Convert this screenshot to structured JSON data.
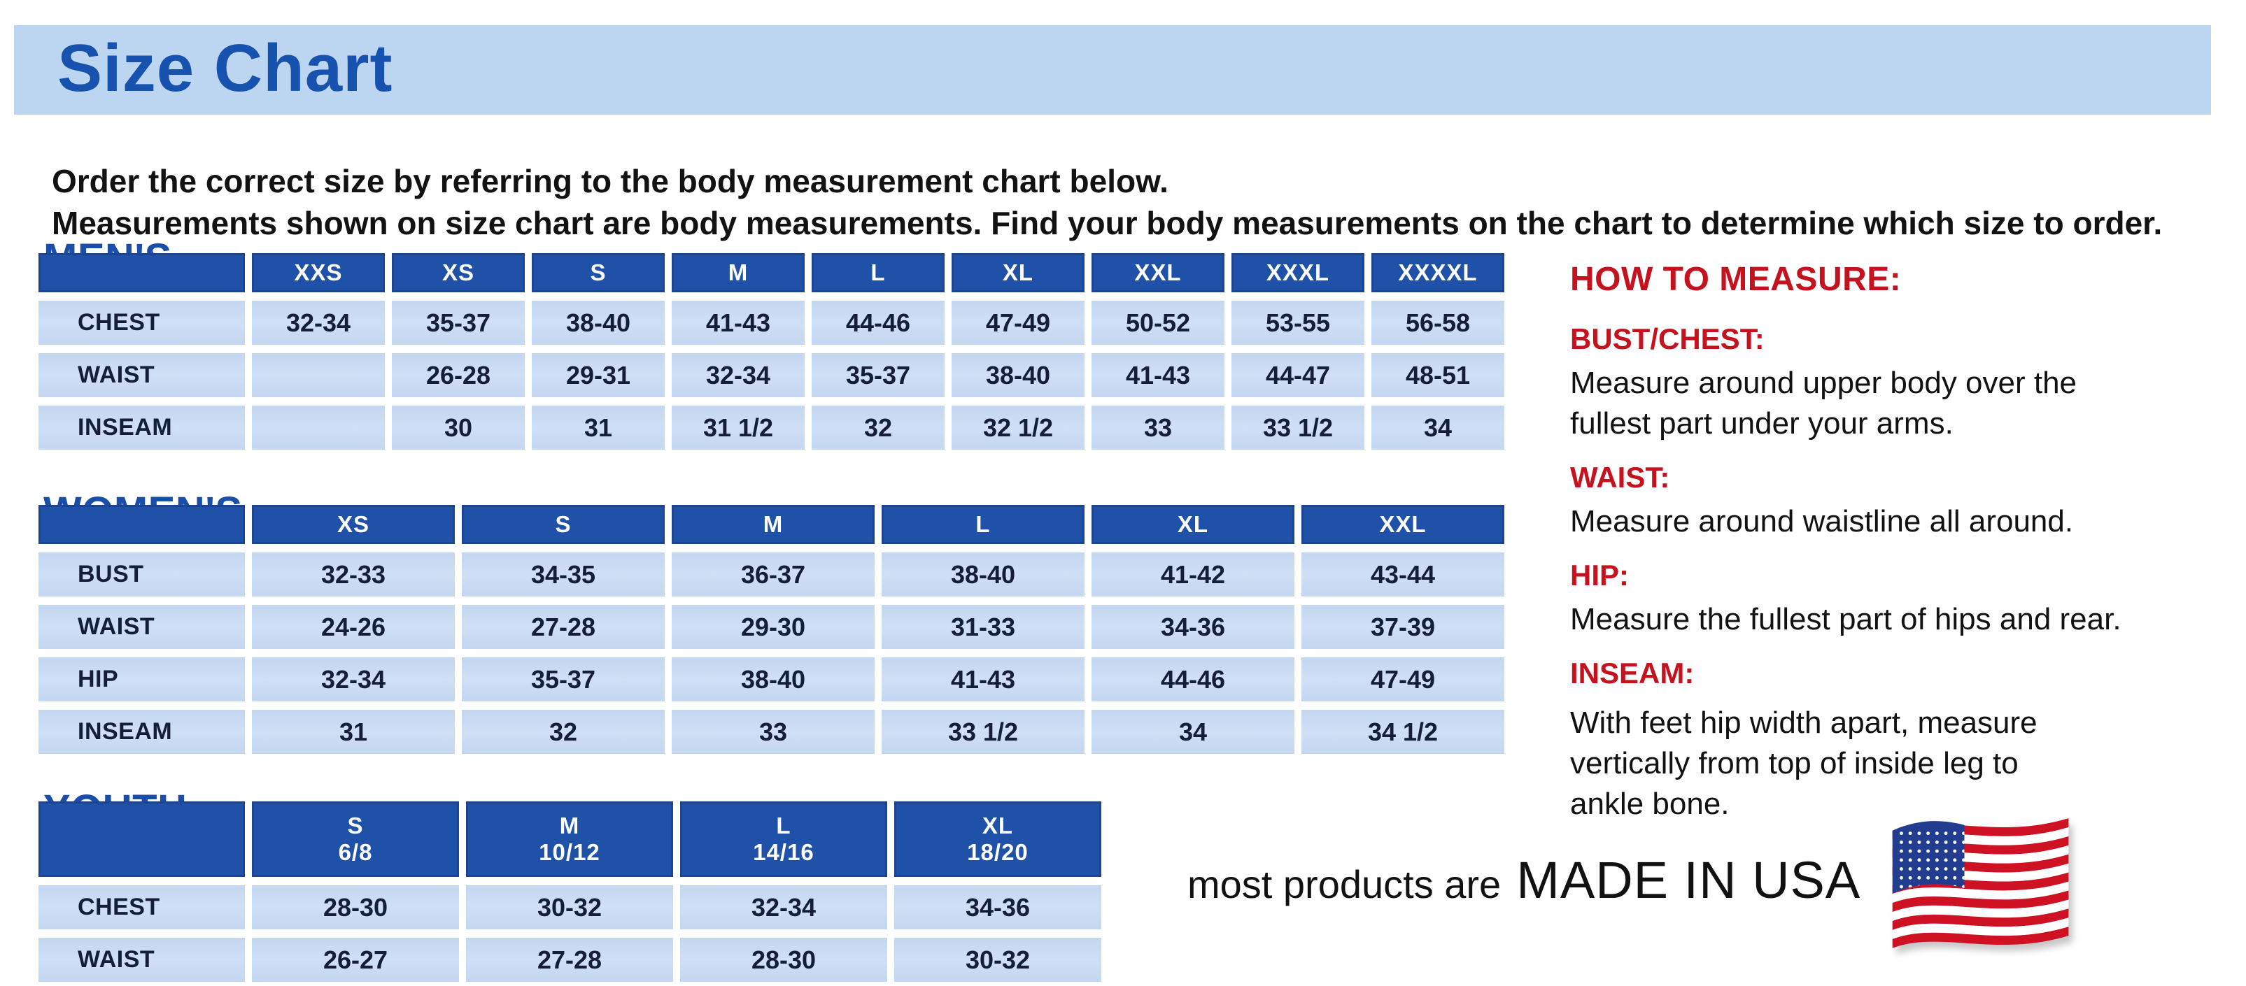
{
  "title": "Size Chart",
  "intro": {
    "line1": "Order the correct size by referring to the body measurement chart below.",
    "line2": "Measurements shown on size chart are body measurements.  Find your body measurements on the chart to determine which size to order."
  },
  "colors": {
    "band_blue": "#bcd5f1",
    "title_blue": "#1652ae",
    "heading_blue": "#1b4ea8",
    "header_cell_blue": "#2051a8",
    "cell_blue": "#c9dbf2",
    "cell_text_navy": "#141e38",
    "red": "#c4121f",
    "flag_red": "#cf1223",
    "flag_canton_blue": "#223d8f"
  },
  "tables": [
    {
      "id": "mens",
      "heading": "MEN'S",
      "columns": [
        "XXS",
        "XS",
        "S",
        "M",
        "L",
        "XL",
        "XXL",
        "XXXL",
        "XXXXL"
      ],
      "rows": [
        {
          "label": "CHEST",
          "values": [
            "32-34",
            "35-37",
            "38-40",
            "41-43",
            "44-46",
            "47-49",
            "50-52",
            "53-55",
            "56-58"
          ]
        },
        {
          "label": "WAIST",
          "values": [
            "",
            "26-28",
            "29-31",
            "32-34",
            "35-37",
            "38-40",
            "41-43",
            "44-47",
            "48-51"
          ]
        },
        {
          "label": "INSEAM",
          "values": [
            "",
            "30",
            "31",
            "31 1/2",
            "32",
            "32 1/2",
            "33",
            "33 1/2",
            "34"
          ]
        }
      ]
    },
    {
      "id": "womens",
      "heading": "WOMEN'S",
      "columns": [
        "XS",
        "S",
        "M",
        "L",
        "XL",
        "XXL"
      ],
      "rows": [
        {
          "label": "BUST",
          "values": [
            "32-33",
            "34-35",
            "36-37",
            "38-40",
            "41-42",
            "43-44"
          ]
        },
        {
          "label": "WAIST",
          "values": [
            "24-26",
            "27-28",
            "29-30",
            "31-33",
            "34-36",
            "37-39"
          ]
        },
        {
          "label": "HIP",
          "values": [
            "32-34",
            "35-37",
            "38-40",
            "41-43",
            "44-46",
            "47-49"
          ]
        },
        {
          "label": "INSEAM",
          "values": [
            "31",
            "32",
            "33",
            "33 1/2",
            "34",
            "34 1/2"
          ]
        }
      ]
    },
    {
      "id": "youth",
      "heading": "YOUTH",
      "columns": [
        [
          "S",
          "6/8"
        ],
        [
          "M",
          "10/12"
        ],
        [
          "L",
          "14/16"
        ],
        [
          "XL",
          "18/20"
        ]
      ],
      "rows": [
        {
          "label": "CHEST",
          "values": [
            "28-30",
            "30-32",
            "32-34",
            "34-36"
          ]
        },
        {
          "label": "WAIST",
          "values": [
            "26-27",
            "27-28",
            "28-30",
            "30-32"
          ]
        }
      ]
    }
  ],
  "how_to_measure": {
    "heading": "HOW TO MEASURE:",
    "sections": [
      {
        "label": "BUST/CHEST:",
        "text": "Measure around upper body over the\nfullest part under your arms."
      },
      {
        "label": "WAIST:",
        "text": "Measure around waistline all around."
      },
      {
        "label": "HIP:",
        "text": "Measure the fullest part of hips and rear."
      },
      {
        "label": "INSEAM:",
        "text": "With feet hip width apart, measure\nvertically from top of inside leg to\nankle bone."
      }
    ]
  },
  "made_in_usa": {
    "prefix": "most products are",
    "big": "MADE IN USA",
    "flag_icon": "us-flag-icon"
  }
}
